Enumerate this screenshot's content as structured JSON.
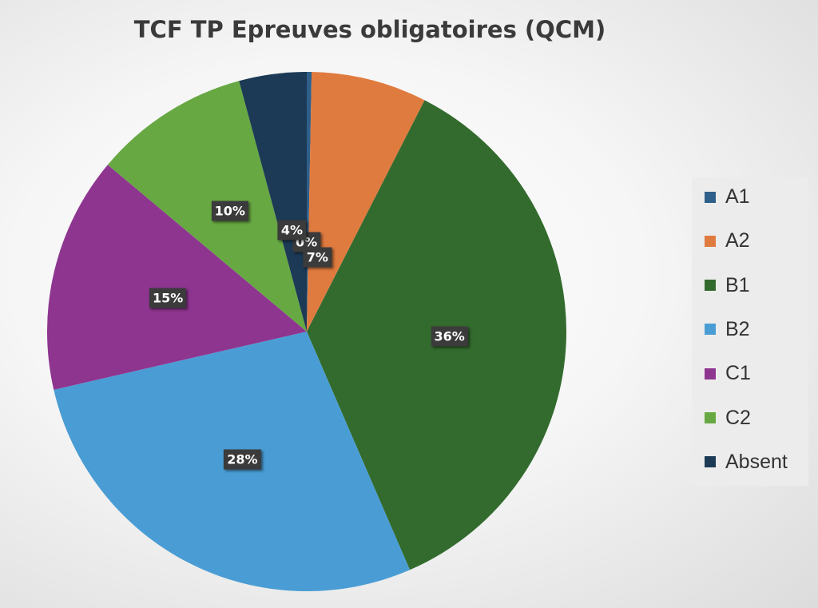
{
  "chart_data": {
    "type": "pie",
    "title": "TCF TP Epreuves obligatoires (QCM)",
    "categories": [
      "A1",
      "A2",
      "B1",
      "B2",
      "C1",
      "C2",
      "Absent"
    ],
    "values": [
      0.3,
      7.2,
      36.0,
      27.9,
      14.7,
      9.7,
      4.2
    ],
    "data_labels": [
      "0%",
      "7%",
      "36%",
      "28%",
      "15%",
      "10%",
      "4%"
    ],
    "colors": [
      "#2e5f8a",
      "#e07b3f",
      "#336b2e",
      "#4a9dd4",
      "#8e3590",
      "#67a843",
      "#1c3a55"
    ],
    "legend_position": "right"
  }
}
